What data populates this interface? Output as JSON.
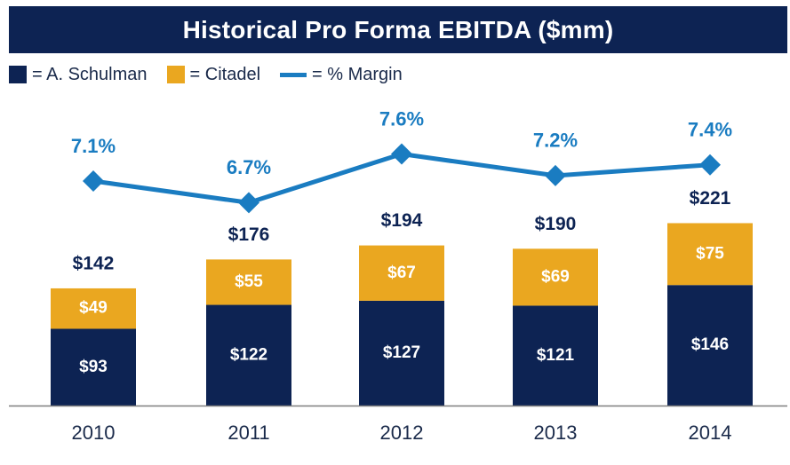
{
  "title": "Historical Pro Forma EBITDA ($mm)",
  "legend": [
    {
      "label": "= A. Schulman",
      "color": "#0d2353",
      "kind": "box"
    },
    {
      "label": "= Citadel",
      "color": "#eaa720",
      "kind": "box"
    },
    {
      "label": "= % Margin",
      "color": "#1a7cc1",
      "kind": "line"
    }
  ],
  "chart_data": {
    "type": "bar",
    "stacked": true,
    "title": "Historical Pro Forma EBITDA ($mm)",
    "categories": [
      "2010",
      "2011",
      "2012",
      "2013",
      "2014"
    ],
    "series": [
      {
        "name": "A. Schulman",
        "values": [
          93,
          122,
          127,
          121,
          146
        ],
        "labels": [
          "$93",
          "$122",
          "$127",
          "$121",
          "$146"
        ],
        "color": "#0d2353"
      },
      {
        "name": "Citadel",
        "values": [
          49,
          55,
          67,
          69,
          75
        ],
        "labels": [
          "$49",
          "$55",
          "$67",
          "$69",
          "$75"
        ],
        "color": "#eaa720"
      }
    ],
    "totals": [
      142,
      176,
      194,
      190,
      221
    ],
    "total_labels": [
      "$142",
      "$176",
      "$194",
      "$190",
      "$221"
    ],
    "margin_series": {
      "name": "% Margin",
      "type": "line",
      "values": [
        7.1,
        6.7,
        7.6,
        7.2,
        7.4
      ],
      "labels": [
        "7.1%",
        "6.7%",
        "7.6%",
        "7.2%",
        "7.4%"
      ],
      "color": "#1a7cc1"
    },
    "legend_position": "top-left",
    "grid": false
  }
}
